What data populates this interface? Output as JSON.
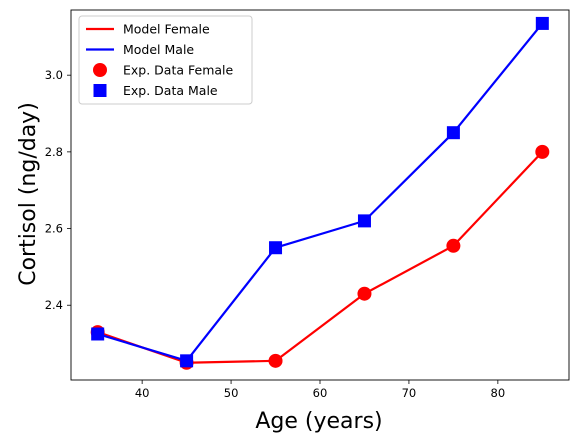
{
  "chart_data": {
    "type": "line",
    "title": "",
    "xlabel": "Age (years)",
    "ylabel": "Cortisol (ng/day)",
    "xlim": [
      32,
      88
    ],
    "ylim": [
      2.205,
      3.17
    ],
    "xticks": [
      40,
      50,
      60,
      70,
      80
    ],
    "yticks": [
      2.4,
      2.6,
      2.8,
      3.0
    ],
    "xtick_labels": [
      "40",
      "50",
      "60",
      "70",
      "80"
    ],
    "ytick_labels": [
      "2.4",
      "2.6",
      "2.8",
      "3.0"
    ],
    "grid": false,
    "legend_position": "top-left",
    "x": [
      35,
      45,
      55,
      65,
      75,
      85
    ],
    "series": [
      {
        "name": "Model Female",
        "kind": "line",
        "color": "#ff0000",
        "values": [
          2.33,
          2.25,
          2.255,
          2.43,
          2.555,
          2.8
        ]
      },
      {
        "name": "Model Male",
        "kind": "line",
        "color": "#0000ff",
        "values": [
          2.325,
          2.255,
          2.55,
          2.62,
          2.85,
          3.135
        ]
      },
      {
        "name": "Exp. Data Female",
        "kind": "marker",
        "marker": "circle",
        "color": "#ff0000",
        "values": [
          2.33,
          2.25,
          2.255,
          2.43,
          2.555,
          2.8
        ]
      },
      {
        "name": "Exp. Data Male",
        "kind": "marker",
        "marker": "square",
        "color": "#0000ff",
        "values": [
          2.325,
          2.255,
          2.55,
          2.62,
          2.85,
          3.135
        ]
      }
    ]
  }
}
